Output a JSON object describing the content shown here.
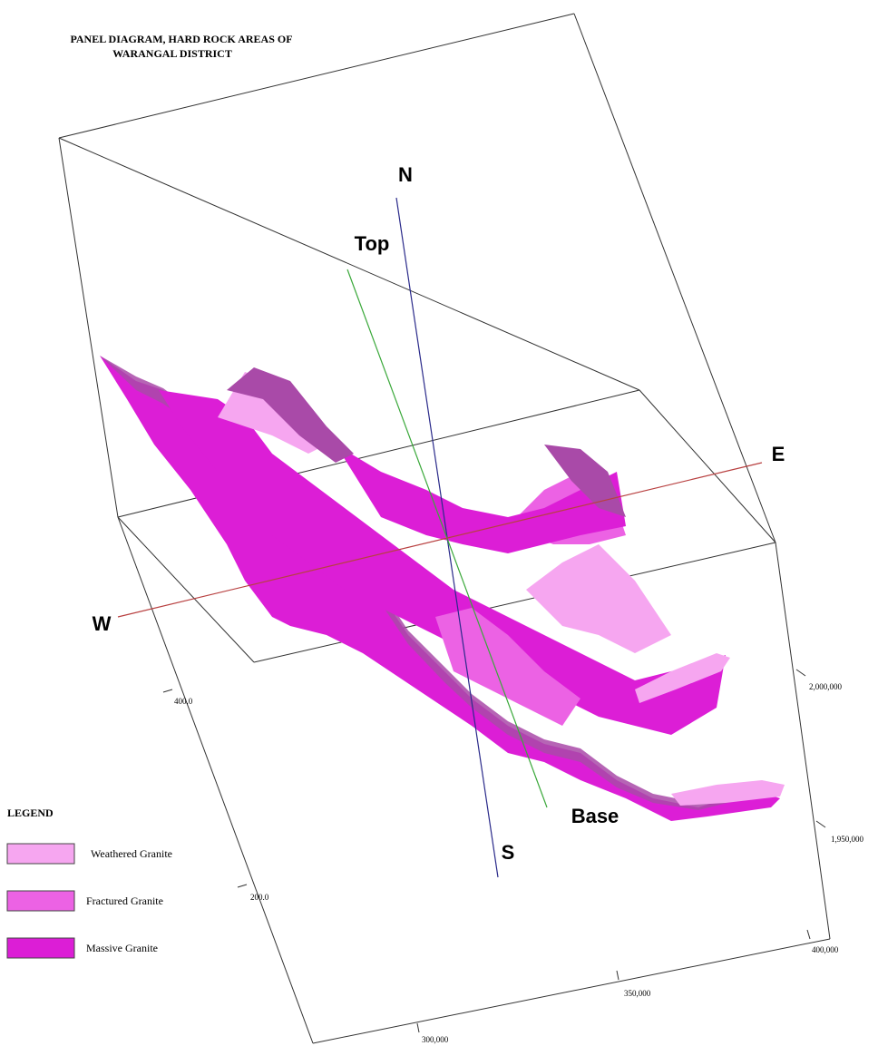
{
  "title": [
    "PANEL DIAGRAM, HARD ROCK AREAS OF",
    "WARANGAL DISTRICT"
  ],
  "directions": {
    "north": "N",
    "south": "S",
    "east": "E",
    "west": "W",
    "top": "Top",
    "base": "Base"
  },
  "axis_labels": [
    "400.0",
    "200.0",
    "2,000,000",
    "1,950,000",
    "400,000",
    "350,000",
    "300,000"
  ],
  "legend": {
    "title": "LEGEND",
    "items": [
      {
        "label": "Weathered Granite",
        "color": "#f6a6f0"
      },
      {
        "label": "Fractured Granite",
        "color": "#ec62e4"
      },
      {
        "label": "Massive Granite",
        "color": "#dc1ed6"
      }
    ]
  }
}
